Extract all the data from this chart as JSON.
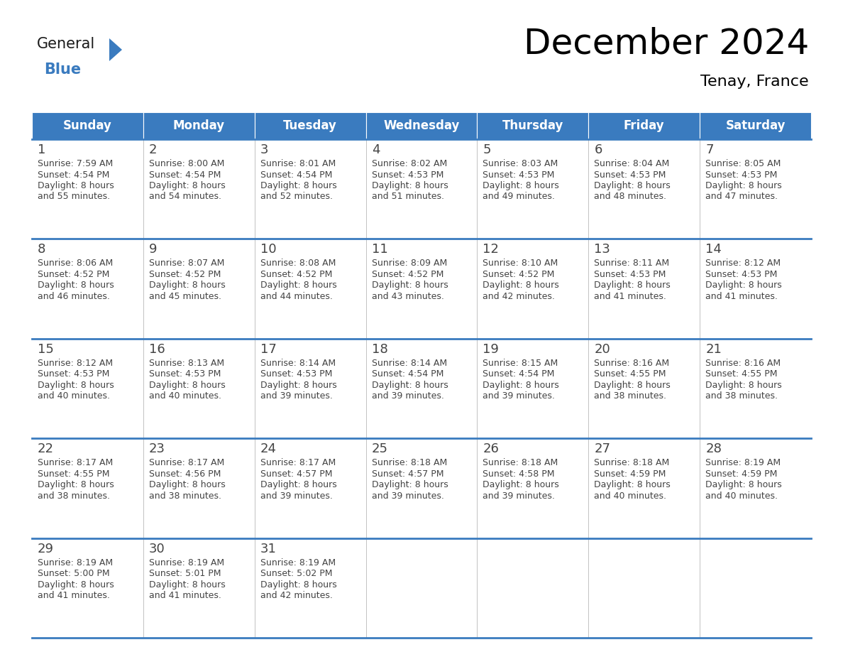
{
  "title": "December 2024",
  "subtitle": "Tenay, France",
  "header_color": "#3a7bbf",
  "header_text_color": "#ffffff",
  "day_number_color": "#444444",
  "cell_text_color": "#444444",
  "border_color": "#3a7bbf",
  "grid_line_color": "#aaaaaa",
  "days_of_week": [
    "Sunday",
    "Monday",
    "Tuesday",
    "Wednesday",
    "Thursday",
    "Friday",
    "Saturday"
  ],
  "weeks": [
    [
      {
        "day": 1,
        "sunrise": "7:59 AM",
        "sunset": "4:54 PM",
        "daylight": "8 hours and 55 minutes."
      },
      {
        "day": 2,
        "sunrise": "8:00 AM",
        "sunset": "4:54 PM",
        "daylight": "8 hours and 54 minutes."
      },
      {
        "day": 3,
        "sunrise": "8:01 AM",
        "sunset": "4:54 PM",
        "daylight": "8 hours and 52 minutes."
      },
      {
        "day": 4,
        "sunrise": "8:02 AM",
        "sunset": "4:53 PM",
        "daylight": "8 hours and 51 minutes."
      },
      {
        "day": 5,
        "sunrise": "8:03 AM",
        "sunset": "4:53 PM",
        "daylight": "8 hours and 49 minutes."
      },
      {
        "day": 6,
        "sunrise": "8:04 AM",
        "sunset": "4:53 PM",
        "daylight": "8 hours and 48 minutes."
      },
      {
        "day": 7,
        "sunrise": "8:05 AM",
        "sunset": "4:53 PM",
        "daylight": "8 hours and 47 minutes."
      }
    ],
    [
      {
        "day": 8,
        "sunrise": "8:06 AM",
        "sunset": "4:52 PM",
        "daylight": "8 hours and 46 minutes."
      },
      {
        "day": 9,
        "sunrise": "8:07 AM",
        "sunset": "4:52 PM",
        "daylight": "8 hours and 45 minutes."
      },
      {
        "day": 10,
        "sunrise": "8:08 AM",
        "sunset": "4:52 PM",
        "daylight": "8 hours and 44 minutes."
      },
      {
        "day": 11,
        "sunrise": "8:09 AM",
        "sunset": "4:52 PM",
        "daylight": "8 hours and 43 minutes."
      },
      {
        "day": 12,
        "sunrise": "8:10 AM",
        "sunset": "4:52 PM",
        "daylight": "8 hours and 42 minutes."
      },
      {
        "day": 13,
        "sunrise": "8:11 AM",
        "sunset": "4:53 PM",
        "daylight": "8 hours and 41 minutes."
      },
      {
        "day": 14,
        "sunrise": "8:12 AM",
        "sunset": "4:53 PM",
        "daylight": "8 hours and 41 minutes."
      }
    ],
    [
      {
        "day": 15,
        "sunrise": "8:12 AM",
        "sunset": "4:53 PM",
        "daylight": "8 hours and 40 minutes."
      },
      {
        "day": 16,
        "sunrise": "8:13 AM",
        "sunset": "4:53 PM",
        "daylight": "8 hours and 40 minutes."
      },
      {
        "day": 17,
        "sunrise": "8:14 AM",
        "sunset": "4:53 PM",
        "daylight": "8 hours and 39 minutes."
      },
      {
        "day": 18,
        "sunrise": "8:14 AM",
        "sunset": "4:54 PM",
        "daylight": "8 hours and 39 minutes."
      },
      {
        "day": 19,
        "sunrise": "8:15 AM",
        "sunset": "4:54 PM",
        "daylight": "8 hours and 39 minutes."
      },
      {
        "day": 20,
        "sunrise": "8:16 AM",
        "sunset": "4:55 PM",
        "daylight": "8 hours and 38 minutes."
      },
      {
        "day": 21,
        "sunrise": "8:16 AM",
        "sunset": "4:55 PM",
        "daylight": "8 hours and 38 minutes."
      }
    ],
    [
      {
        "day": 22,
        "sunrise": "8:17 AM",
        "sunset": "4:55 PM",
        "daylight": "8 hours and 38 minutes."
      },
      {
        "day": 23,
        "sunrise": "8:17 AM",
        "sunset": "4:56 PM",
        "daylight": "8 hours and 38 minutes."
      },
      {
        "day": 24,
        "sunrise": "8:17 AM",
        "sunset": "4:57 PM",
        "daylight": "8 hours and 39 minutes."
      },
      {
        "day": 25,
        "sunrise": "8:18 AM",
        "sunset": "4:57 PM",
        "daylight": "8 hours and 39 minutes."
      },
      {
        "day": 26,
        "sunrise": "8:18 AM",
        "sunset": "4:58 PM",
        "daylight": "8 hours and 39 minutes."
      },
      {
        "day": 27,
        "sunrise": "8:18 AM",
        "sunset": "4:59 PM",
        "daylight": "8 hours and 40 minutes."
      },
      {
        "day": 28,
        "sunrise": "8:19 AM",
        "sunset": "4:59 PM",
        "daylight": "8 hours and 40 minutes."
      }
    ],
    [
      {
        "day": 29,
        "sunrise": "8:19 AM",
        "sunset": "5:00 PM",
        "daylight": "8 hours and 41 minutes."
      },
      {
        "day": 30,
        "sunrise": "8:19 AM",
        "sunset": "5:01 PM",
        "daylight": "8 hours and 41 minutes."
      },
      {
        "day": 31,
        "sunrise": "8:19 AM",
        "sunset": "5:02 PM",
        "daylight": "8 hours and 42 minutes."
      },
      null,
      null,
      null,
      null
    ]
  ],
  "fig_width": 11.88,
  "fig_height": 9.18,
  "title_fontsize": 36,
  "subtitle_fontsize": 16,
  "header_fontsize": 12,
  "day_num_fontsize": 13,
  "cell_text_fontsize": 9
}
